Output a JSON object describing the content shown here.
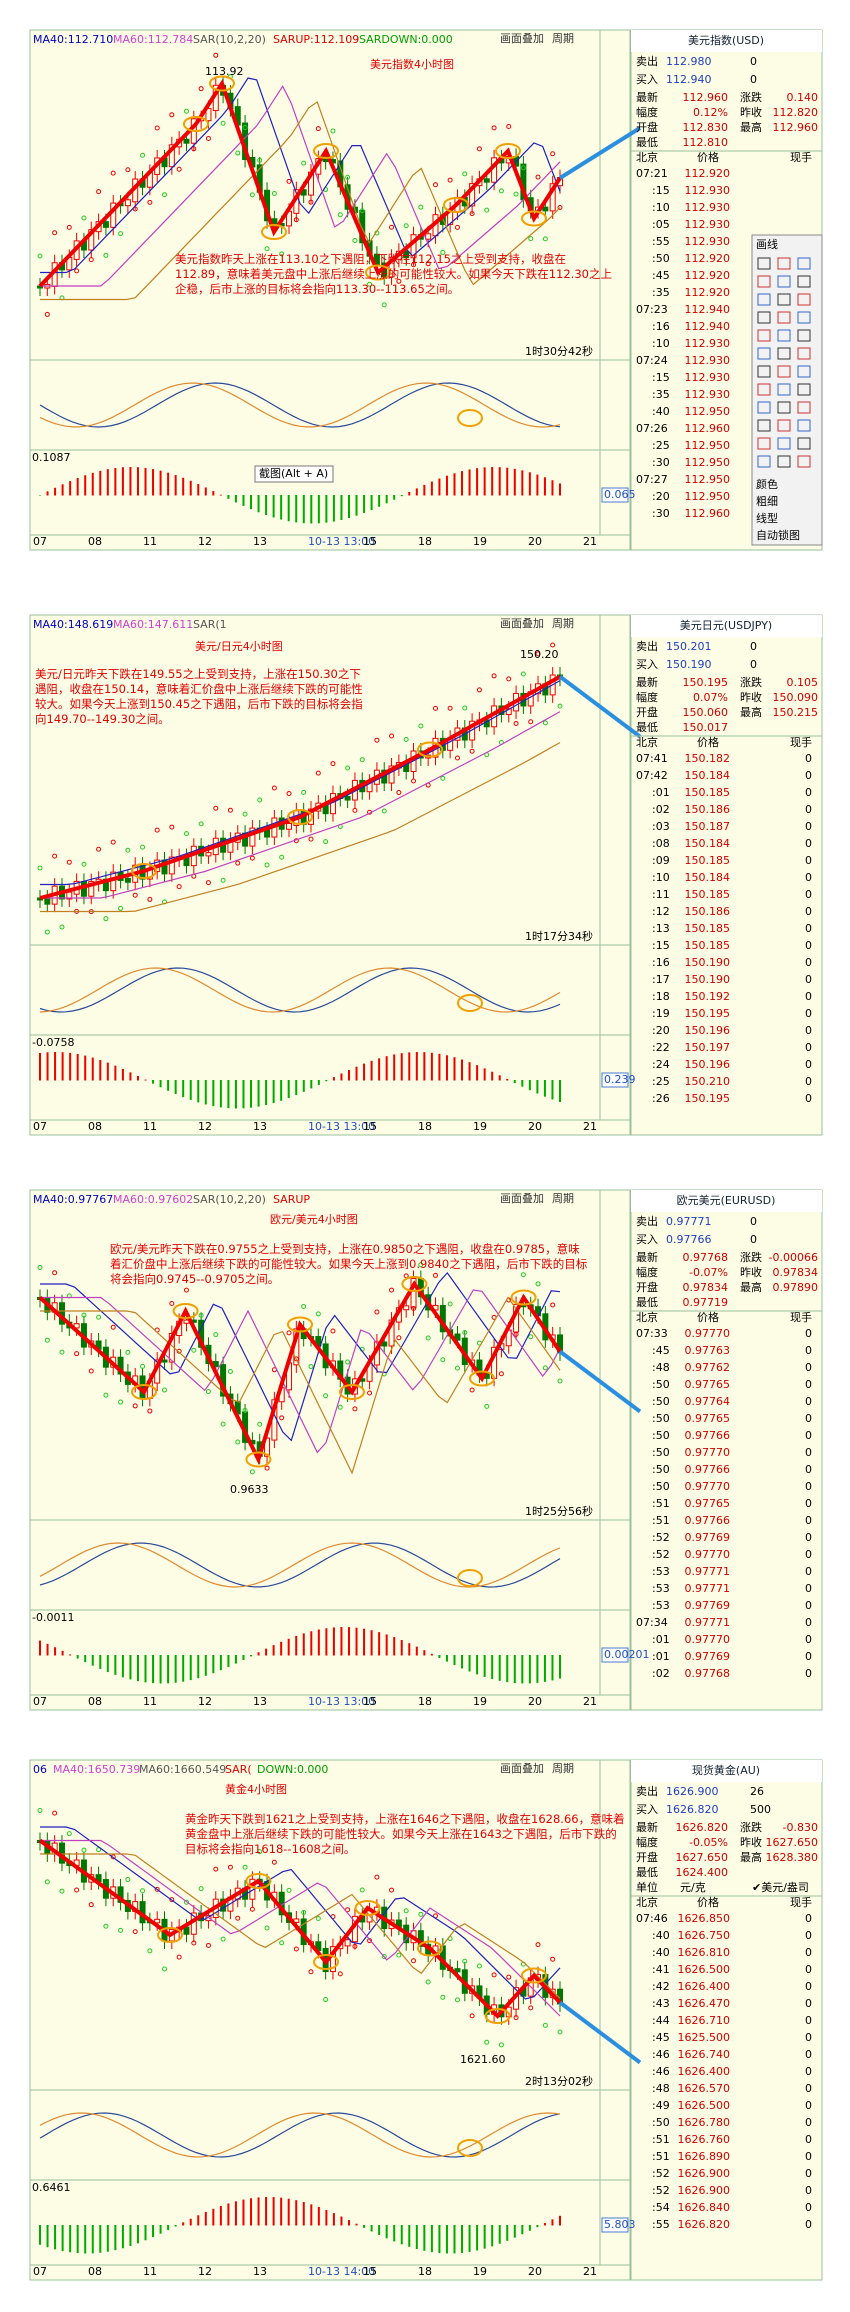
{
  "panels": [
    {
      "title": "美元指数4小时图",
      "indicators": [
        "MA40:112.710",
        "MA60:112.784",
        "SAR(10,2,20)",
        "SARUP:112.109",
        "SARDOWN:0.000"
      ],
      "menu": [
        "画面叠加",
        "周期"
      ],
      "annotation": "美元指数昨天上涨在113.10之下遇阻，下跌在112.15之上受到支持，收盘在112.89，意味着美元盘中上涨后继续上涨的可能性较大。如果今天下跌在112.30之上企稳，后市上涨的目标将会指向113.30--113.65之间。",
      "price_label": "113.92",
      "timer": "1时30分42秒",
      "macd_label": "0.1087",
      "macd_box": "0.065",
      "tooltip": "截图(Alt + A)",
      "x_labels": [
        "07",
        "08",
        "11",
        "12",
        "13",
        "10-13 13:00",
        "15",
        "18",
        "19",
        "20",
        "21"
      ],
      "toolbar": [
        "画线",
        "颜色",
        "粗细",
        "线型",
        "自动锁图"
      ],
      "quote": {
        "name": "美元指数(USD)",
        "sell": [
          "卖出",
          "112.980",
          "0"
        ],
        "buy": [
          "买入",
          "112.940",
          "0"
        ],
        "stats": [
          [
            "最新",
            "112.960",
            "涨跌",
            "0.140"
          ],
          [
            "幅度",
            "0.12%",
            "昨收",
            "112.820"
          ],
          [
            "开盘",
            "112.830",
            "最高",
            "112.960"
          ],
          [
            "最低",
            "112.810"
          ]
        ],
        "columns": [
          "北京",
          "价格",
          "现手"
        ],
        "ticks": [
          [
            "07:21",
            "112.920"
          ],
          [
            ":15",
            "112.930"
          ],
          [
            ":10",
            "112.930"
          ],
          [
            ":05",
            "112.930"
          ],
          [
            ":55",
            "112.930"
          ],
          [
            ":50",
            "112.920"
          ],
          [
            ":45",
            "112.920"
          ],
          [
            ":35",
            "112.920"
          ],
          [
            "07:23",
            "112.940"
          ],
          [
            ":16",
            "112.940"
          ],
          [
            ":10",
            "112.930"
          ],
          [
            "07:24",
            "112.930"
          ],
          [
            ":15",
            "112.930"
          ],
          [
            ":35",
            "112.930"
          ],
          [
            ":40",
            "112.950"
          ],
          [
            "07:26",
            "112.960"
          ],
          [
            ":25",
            "112.950"
          ],
          [
            ":30",
            "112.950"
          ],
          [
            "07:27",
            "112.950"
          ],
          [
            ":20",
            "112.950"
          ],
          [
            ":30",
            "112.960"
          ]
        ]
      }
    },
    {
      "title": "美元/日元4小时图",
      "indicators": [
        "MA40:148.619",
        "MA60:147.611",
        "SAR(1"
      ],
      "menu": [
        "画面叠加",
        "周期"
      ],
      "annotation": "美元/日元昨天下跌在149.55之上受到支持，上涨在150.30之下遇阻，收盘在150.14，意味着汇价盘中上涨后继续下跌的可能性较大。如果今天上涨到150.45之下遇阻，后市下跌的目标将会指向149.70--149.30之间。",
      "price_label": "150.20",
      "timer": "1时17分34秒",
      "macd_label": "-0.0758",
      "macd_box": "0.239",
      "x_labels": [
        "07",
        "08",
        "11",
        "12",
        "13",
        "10-13 13:00",
        "15",
        "18",
        "19",
        "20",
        "21"
      ],
      "quote": {
        "name": "美元日元(USDJPY)",
        "sell": [
          "卖出",
          "150.201",
          "0"
        ],
        "buy": [
          "买入",
          "150.190",
          "0"
        ],
        "stats": [
          [
            "最新",
            "150.195",
            "涨跌",
            "0.105"
          ],
          [
            "幅度",
            "0.07%",
            "昨收",
            "150.090"
          ],
          [
            "开盘",
            "150.060",
            "最高",
            "150.215"
          ],
          [
            "最低",
            "150.017"
          ]
        ],
        "columns": [
          "北京",
          "价格",
          "现手"
        ],
        "ticks": [
          [
            "07:41",
            "150.182",
            "0"
          ],
          [
            "07:42",
            "150.184",
            "0"
          ],
          [
            ":01",
            "150.185",
            "0"
          ],
          [
            ":02",
            "150.186",
            "0"
          ],
          [
            ":03",
            "150.187",
            "0"
          ],
          [
            ":08",
            "150.184",
            "0"
          ],
          [
            ":09",
            "150.185",
            "0"
          ],
          [
            ":10",
            "150.184",
            "0"
          ],
          [
            ":11",
            "150.185",
            "0"
          ],
          [
            ":12",
            "150.186",
            "0"
          ],
          [
            ":13",
            "150.185",
            "0"
          ],
          [
            ":15",
            "150.185",
            "0"
          ],
          [
            ":16",
            "150.190",
            "0"
          ],
          [
            ":17",
            "150.190",
            "0"
          ],
          [
            ":18",
            "150.192",
            "0"
          ],
          [
            ":19",
            "150.195",
            "0"
          ],
          [
            ":20",
            "150.196",
            "0"
          ],
          [
            ":22",
            "150.197",
            "0"
          ],
          [
            ":24",
            "150.196",
            "0"
          ],
          [
            ":25",
            "150.210",
            "0"
          ],
          [
            ":26",
            "150.195",
            "0"
          ]
        ]
      }
    },
    {
      "title": "欧元/美元4小时图",
      "indicators": [
        "MA40:0.97767",
        "MA60:0.97602",
        "SAR(10,2,20)",
        "SARUP"
      ],
      "menu": [
        "画面叠加",
        "周期"
      ],
      "annotation": "欧元/美元昨天下跌在0.9755之上受到支持，上涨在0.9850之下遇阻，收盘在0.9785，意味着汇价盘中上涨后继续下跌的可能性较大。如果今天上涨到0.9840之下遇阻，后市下跌的目标将会指向0.9745--0.9705之间。",
      "price_label": "0.9633",
      "timer": "1时25分56秒",
      "macd_label": "-0.0011",
      "macd_box": "0.00201",
      "x_labels": [
        "07",
        "08",
        "11",
        "12",
        "13",
        "10-13 13:00",
        "15",
        "18",
        "19",
        "20",
        "21"
      ],
      "quote": {
        "name": "欧元美元(EURUSD)",
        "sell": [
          "卖出",
          "0.97771",
          "0"
        ],
        "buy": [
          "买入",
          "0.97766",
          "0"
        ],
        "stats": [
          [
            "最新",
            "0.97768",
            "涨跌",
            "-0.00066"
          ],
          [
            "幅度",
            "-0.07%",
            "昨收",
            "0.97834"
          ],
          [
            "开盘",
            "0.97834",
            "最高",
            "0.97890"
          ],
          [
            "最低",
            "0.97719"
          ]
        ],
        "columns": [
          "北京",
          "价格",
          "现手"
        ],
        "ticks": [
          [
            "07:33",
            "0.97770",
            "0"
          ],
          [
            ":45",
            "0.97763",
            "0"
          ],
          [
            ":48",
            "0.97762",
            "0"
          ],
          [
            ":50",
            "0.97765",
            "0"
          ],
          [
            ":50",
            "0.97764",
            "0"
          ],
          [
            ":50",
            "0.97765",
            "0"
          ],
          [
            ":50",
            "0.97766",
            "0"
          ],
          [
            ":50",
            "0.97770",
            "0"
          ],
          [
            ":50",
            "0.97766",
            "0"
          ],
          [
            ":50",
            "0.97770",
            "0"
          ],
          [
            ":51",
            "0.97765",
            "0"
          ],
          [
            ":51",
            "0.97766",
            "0"
          ],
          [
            ":52",
            "0.97769",
            "0"
          ],
          [
            ":52",
            "0.97770",
            "0"
          ],
          [
            ":53",
            "0.97771",
            "0"
          ],
          [
            ":53",
            "0.97771",
            "0"
          ],
          [
            ":53",
            "0.97769",
            "0"
          ],
          [
            "07:34",
            "0.97771",
            "0"
          ],
          [
            ":01",
            "0.97770",
            "0"
          ],
          [
            ":01",
            "0.97769",
            "0"
          ],
          [
            ":02",
            "0.97768",
            "0"
          ]
        ]
      }
    },
    {
      "title": "黄金4小时图",
      "indicators": [
        "06",
        "MA40:1650.739",
        "MA60:1660.549",
        "SAR(",
        "DOWN:0.000"
      ],
      "menu": [
        "画面叠加",
        "周期"
      ],
      "annotation": "黄金昨天下跌到1621之上受到支持，上涨在1646之下遇阻，收盘在1628.66，意味着黄金盘中上涨后继续下跌的可能性较大。如果今天上涨在1643之下遇阻，后市下跌的目标将会指向1618--1608之间。",
      "price_label": "1621.60",
      "timer": "2时13分02秒",
      "macd_label": "0.6461",
      "macd_box": "5.803",
      "x_labels": [
        "07",
        "08",
        "11",
        "12",
        "13",
        "10-13 14:00",
        "15",
        "18",
        "19",
        "20",
        "21"
      ],
      "quote": {
        "name": "现货黄金(AU)",
        "sell": [
          "卖出",
          "1626.900",
          "26"
        ],
        "buy": [
          "买入",
          "1626.820",
          "500"
        ],
        "stats": [
          [
            "最新",
            "1626.820",
            "涨跌",
            "-0.830"
          ],
          [
            "幅度",
            "-0.05%",
            "昨收",
            "1627.650"
          ],
          [
            "开盘",
            "1627.650",
            "最高",
            "1628.380"
          ],
          [
            "最低",
            "1624.400"
          ]
        ],
        "unit_row": [
          "单位",
          "元/克",
          "✔美元/盎司"
        ],
        "columns": [
          "北京",
          "价格",
          "现手"
        ],
        "ticks": [
          [
            "07:46",
            "1626.850",
            "0"
          ],
          [
            ":40",
            "1626.750",
            "0"
          ],
          [
            ":40",
            "1626.810",
            "0"
          ],
          [
            ":41",
            "1626.500",
            "0"
          ],
          [
            ":42",
            "1626.400",
            "0"
          ],
          [
            ":43",
            "1626.470",
            "0"
          ],
          [
            ":44",
            "1626.710",
            "0"
          ],
          [
            ":45",
            "1625.500",
            "0"
          ],
          [
            ":46",
            "1626.740",
            "0"
          ],
          [
            ":46",
            "1626.400",
            "0"
          ],
          [
            ":48",
            "1626.570",
            "0"
          ],
          [
            ":49",
            "1626.500",
            "0"
          ],
          [
            ":50",
            "1626.780",
            "0"
          ],
          [
            ":51",
            "1626.760",
            "0"
          ],
          [
            ":51",
            "1626.890",
            "0"
          ],
          [
            ":52",
            "1626.900",
            "0"
          ],
          [
            ":52",
            "1626.900",
            "0"
          ],
          [
            ":54",
            "1626.840",
            "0"
          ],
          [
            ":55",
            "1626.820",
            "0"
          ]
        ]
      }
    }
  ]
}
